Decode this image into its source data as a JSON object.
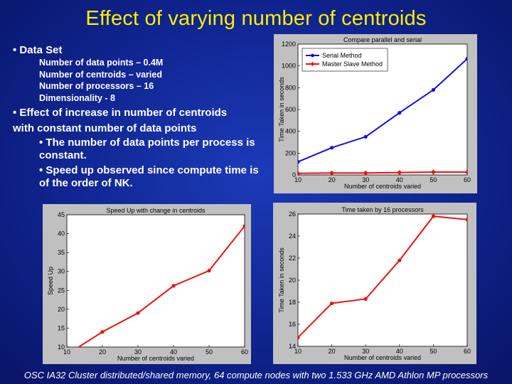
{
  "title": "Effect of varying number of centroids",
  "bullet1": {
    "label": "• Data Set",
    "details": [
      "Number of data points – 0.4M",
      "Number of centroids – varied",
      "Number of processors – 16",
      "Dimensionality - 8"
    ]
  },
  "bullet2": {
    "line1": "• Effect of increase in number of centroids",
    "line2": "with constant number of data points",
    "sub1_line1": "• The number of data points per process is",
    "sub1_line2": "constant.",
    "sub2_line1": "• Speed up observed since compute time is",
    "sub2_line2": "of the order of NK."
  },
  "footer": "OSC IA32 Cluster distributed/shared memory, 64 compute nodes with two 1.533 GHz AMD Athlon MP processors",
  "colors": {
    "title": "#ffee00",
    "serial": "#1010e0",
    "master": "#ee1111"
  },
  "chart_data": [
    {
      "type": "line",
      "title": "Compare parallel and serial",
      "xlabel": "Number of centroids varied",
      "ylabel": "Time Taken in seconds",
      "x": [
        10,
        20,
        30,
        40,
        50,
        60
      ],
      "xlim": [
        10,
        60
      ],
      "ylim": [
        0,
        1200
      ],
      "xticks": [
        10,
        20,
        30,
        40,
        50,
        60
      ],
      "yticks": [
        0,
        200,
        400,
        600,
        800,
        1000,
        1200
      ],
      "legend": "top-left",
      "series": [
        {
          "name": "Serial Method",
          "values": [
            120,
            250,
            350,
            570,
            780,
            1065
          ],
          "color": "#1010e0",
          "marker": "dot"
        },
        {
          "name": "Master Slave Method",
          "values": [
            15,
            18,
            18,
            22,
            26,
            26
          ],
          "color": "#ee1111",
          "marker": "diamond"
        }
      ]
    },
    {
      "type": "line",
      "title": "Speed Up with change in centroids",
      "xlabel": "Number of centroids varied",
      "ylabel": "Speed Up",
      "x": [
        10,
        20,
        30,
        40,
        50,
        60
      ],
      "xlim": [
        10,
        60
      ],
      "ylim": [
        10,
        45
      ],
      "xticks": [
        10,
        20,
        30,
        40,
        50,
        60
      ],
      "yticks": [
        10,
        15,
        20,
        25,
        30,
        35,
        40,
        45
      ],
      "series": [
        {
          "values": [
            8,
            14,
            19,
            26.2,
            30.2,
            42
          ],
          "color": "#ee1111",
          "marker": "dot"
        }
      ]
    },
    {
      "type": "line",
      "title": "Time taken by 16 processors",
      "xlabel": "Number of centroids varied",
      "ylabel": "Time Taken in seconds",
      "x": [
        10,
        20,
        30,
        40,
        50,
        60
      ],
      "xlim": [
        10,
        60
      ],
      "ylim": [
        14,
        26
      ],
      "xticks": [
        10,
        20,
        30,
        40,
        50,
        60
      ],
      "yticks": [
        14,
        16,
        18,
        20,
        22,
        24,
        26
      ],
      "series": [
        {
          "values": [
            14.8,
            17.9,
            18.3,
            21.8,
            25.8,
            25.5
          ],
          "color": "#ee1111",
          "marker": "dot"
        }
      ]
    }
  ]
}
